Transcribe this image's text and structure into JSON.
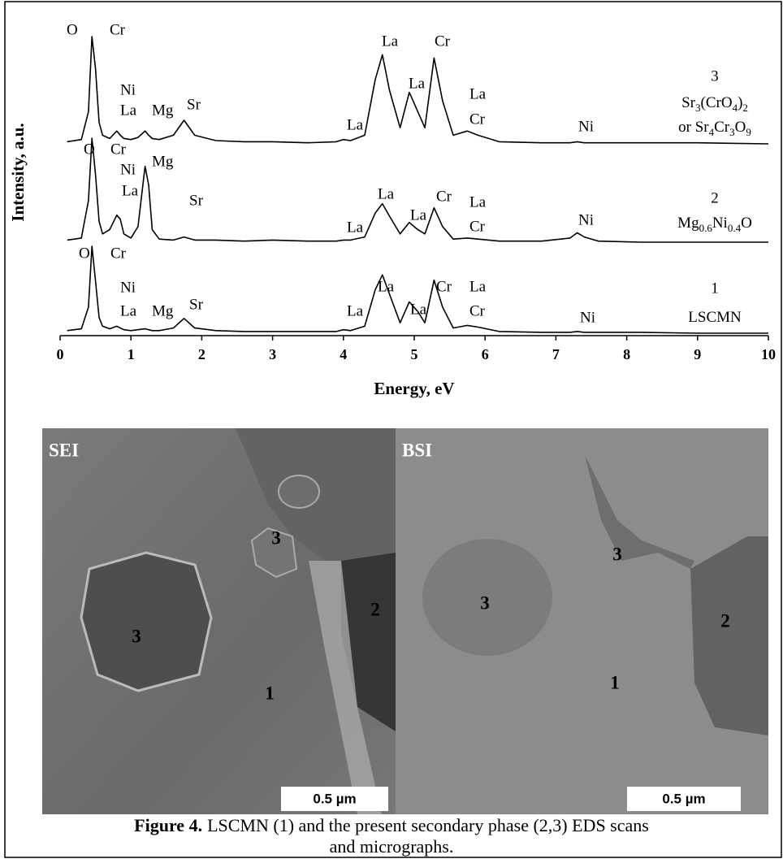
{
  "chart_data": {
    "type": "line",
    "xlabel": "Energy, eV",
    "ylabel": "Intensity, a.u.",
    "xlim": [
      0,
      10
    ],
    "xticks": [
      0,
      1,
      2,
      3,
      4,
      5,
      6,
      7,
      8,
      9,
      10
    ],
    "ylim": [
      0,
      100
    ],
    "color": "#000000",
    "x": [
      0.1,
      0.3,
      0.4,
      0.45,
      0.5,
      0.55,
      0.6,
      0.7,
      0.8,
      0.85,
      0.9,
      1.0,
      1.1,
      1.2,
      1.25,
      1.3,
      1.4,
      1.6,
      1.75,
      1.9,
      2.2,
      2.6,
      3.0,
      3.5,
      3.9,
      4.0,
      4.1,
      4.3,
      4.45,
      4.55,
      4.65,
      4.8,
      4.93,
      5.05,
      5.15,
      5.28,
      5.4,
      5.55,
      5.75,
      5.9,
      6.2,
      6.8,
      7.2,
      7.3,
      7.4,
      7.6,
      8.2,
      9.0,
      10.0
    ],
    "series": [
      {
        "name": "3",
        "phase": [
          [
            "Sr",
            "3",
            "(CrO",
            "4",
            ")",
            "2"
          ],
          [
            "or Sr",
            "4",
            "Cr",
            "3",
            "O",
            "9"
          ]
        ],
        "peak_labels": [
          "O",
          "Cr",
          "Ni",
          "La",
          "Mg",
          "Sr",
          "La",
          "La",
          "La",
          "Cr",
          "La",
          "Cr",
          "Ni"
        ],
        "values": [
          2,
          4,
          30,
          100,
          70,
          20,
          8,
          5,
          12,
          8,
          5,
          4,
          6,
          12,
          8,
          5,
          4,
          8,
          22,
          8,
          3,
          2,
          2,
          1,
          2,
          4,
          3,
          8,
          60,
          83,
          50,
          15,
          48,
          30,
          15,
          80,
          40,
          8,
          12,
          8,
          2,
          1,
          1,
          2,
          1,
          1,
          1,
          1,
          0
        ]
      },
      {
        "name": "2",
        "phase": [
          [
            "Mg",
            "0.6",
            "Ni",
            "0.4",
            "O"
          ]
        ],
        "peak_labels": [
          "O",
          "Cr",
          "Ni",
          "La",
          "Mg",
          "Sr",
          "La",
          "La",
          "La",
          "Cr",
          "La",
          "Cr",
          "Ni"
        ],
        "values": [
          2,
          4,
          40,
          100,
          65,
          20,
          8,
          12,
          26,
          22,
          8,
          4,
          15,
          73,
          55,
          12,
          3,
          2,
          5,
          2,
          2,
          1,
          2,
          1,
          1,
          2,
          2,
          5,
          28,
          37,
          25,
          8,
          19,
          12,
          8,
          33,
          15,
          3,
          4,
          3,
          1,
          1,
          4,
          9,
          5,
          1,
          0,
          0,
          0
        ]
      },
      {
        "name": "1",
        "phase": [
          [
            "LSCMN"
          ]
        ],
        "peak_labels": [
          "O",
          "Cr",
          "Ni",
          "La",
          "Mg",
          "Sr",
          "La",
          "La",
          "La",
          "Cr",
          "La",
          "Cr",
          "Ni"
        ],
        "values": [
          3,
          5,
          30,
          100,
          60,
          18,
          8,
          5,
          8,
          6,
          4,
          3,
          4,
          5,
          4,
          3,
          3,
          6,
          17,
          6,
          3,
          2,
          2,
          2,
          2,
          4,
          3,
          8,
          50,
          67,
          45,
          12,
          36,
          25,
          12,
          61,
          30,
          6,
          9,
          7,
          2,
          1,
          1,
          2,
          1,
          1,
          1,
          0,
          0
        ]
      }
    ]
  },
  "micrographs": [
    {
      "label": "SEI",
      "markers": [
        "3",
        "3",
        "2",
        "1"
      ],
      "scale_bar": "0.5 µm"
    },
    {
      "label": "BSI",
      "markers": [
        "3",
        "3",
        "2",
        "1"
      ],
      "scale_bar": "0.5 µm"
    }
  ],
  "caption": {
    "label": "Figure 4.",
    "lines": [
      "LSCMN (1) and the present secondary phase (2,3) EDS scans",
      "and micrographs."
    ]
  }
}
